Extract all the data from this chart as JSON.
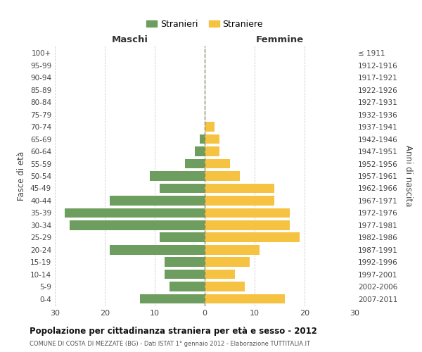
{
  "age_groups": [
    "0-4",
    "5-9",
    "10-14",
    "15-19",
    "20-24",
    "25-29",
    "30-34",
    "35-39",
    "40-44",
    "45-49",
    "50-54",
    "55-59",
    "60-64",
    "65-69",
    "70-74",
    "75-79",
    "80-84",
    "85-89",
    "90-94",
    "95-99",
    "100+"
  ],
  "birth_years": [
    "2007-2011",
    "2002-2006",
    "1997-2001",
    "1992-1996",
    "1987-1991",
    "1982-1986",
    "1977-1981",
    "1972-1976",
    "1967-1971",
    "1962-1966",
    "1957-1961",
    "1952-1956",
    "1947-1951",
    "1942-1946",
    "1937-1941",
    "1932-1936",
    "1927-1931",
    "1922-1926",
    "1917-1921",
    "1912-1916",
    "≤ 1911"
  ],
  "maschi": [
    13,
    7,
    8,
    8,
    19,
    9,
    27,
    28,
    19,
    9,
    11,
    4,
    2,
    1,
    0,
    0,
    0,
    0,
    0,
    0,
    0
  ],
  "femmine": [
    16,
    8,
    6,
    9,
    11,
    19,
    17,
    17,
    14,
    14,
    7,
    5,
    3,
    3,
    2,
    0,
    0,
    0,
    0,
    0,
    0
  ],
  "maschi_color": "#6e9e5f",
  "femmine_color": "#f5c242",
  "title": "Popolazione per cittadinanza straniera per età e sesso - 2012",
  "subtitle": "COMUNE DI COSTA DI MEZZATE (BG) - Dati ISTAT 1° gennaio 2012 - Elaborazione TUTTITALIA.IT",
  "xlabel_left": "Maschi",
  "xlabel_right": "Femmine",
  "ylabel_left": "Fasce di età",
  "ylabel_right": "Anni di nascita",
  "legend_stranieri": "Stranieri",
  "legend_straniere": "Straniere",
  "xlim": 30,
  "background_color": "#ffffff",
  "grid_color": "#cccccc"
}
